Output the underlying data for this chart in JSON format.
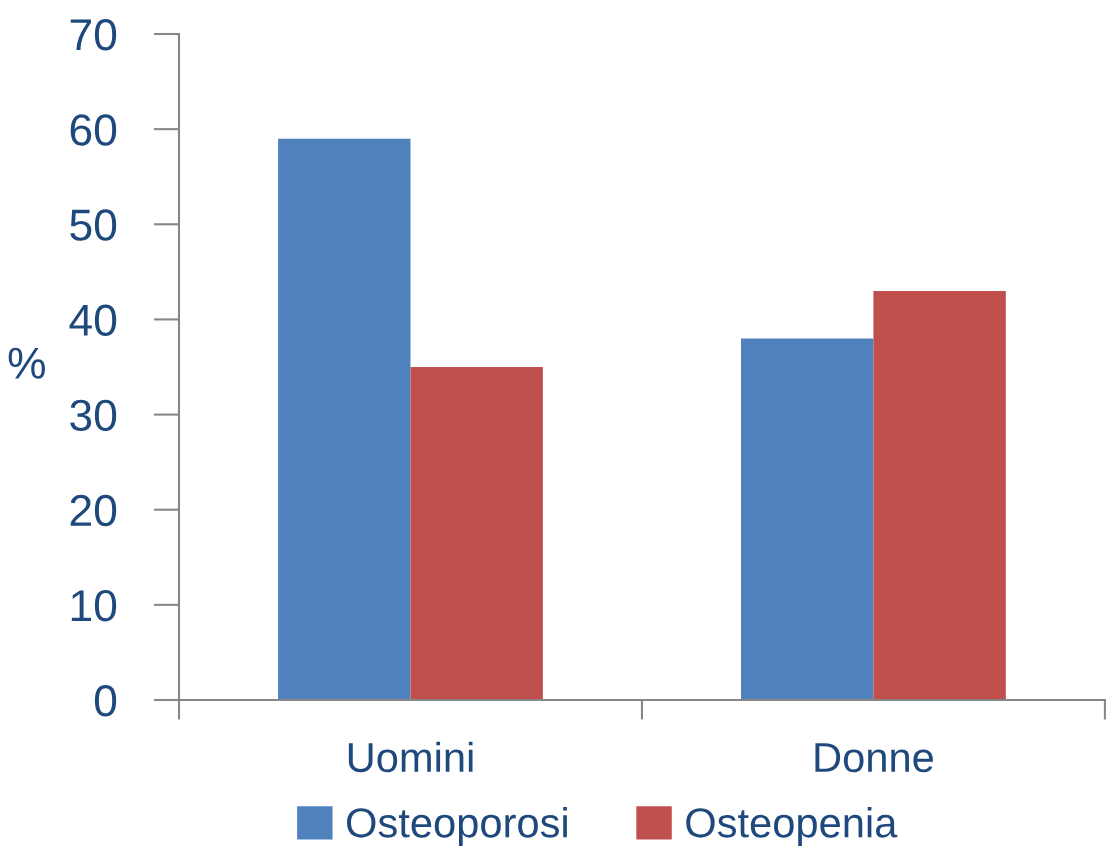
{
  "chart_data": {
    "type": "bar",
    "ylabel": "%",
    "categories": [
      "Uomini",
      "Donne"
    ],
    "series": [
      {
        "name": "Osteoporosi",
        "color": "#4f81bd",
        "values": [
          59,
          38
        ]
      },
      {
        "name": "Osteopenia",
        "color": "#c0504d",
        "values": [
          35,
          43
        ]
      }
    ],
    "ylim": [
      0,
      70
    ],
    "yticks": [
      0,
      10,
      20,
      30,
      40,
      50,
      60,
      70
    ],
    "grid": false,
    "legend": "bottom"
  }
}
